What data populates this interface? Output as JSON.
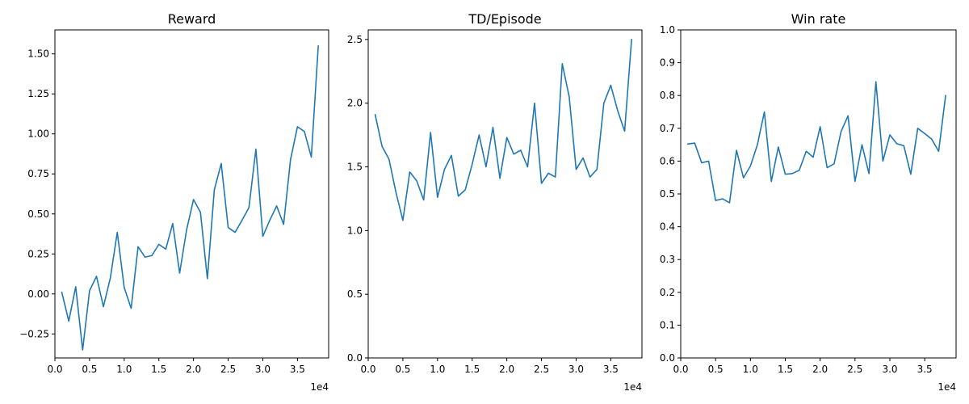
{
  "figure": {
    "background": "#ffffff",
    "line_color": "#1f77b4"
  },
  "chart_data": [
    {
      "type": "line",
      "title": "Reward",
      "xlabel": "",
      "ylabel": "",
      "x_offset_label": "1e4",
      "xlim": [
        0,
        39500
      ],
      "ylim": [
        -0.4,
        1.65
      ],
      "xticks": [
        0,
        5000,
        10000,
        15000,
        20000,
        25000,
        30000,
        35000
      ],
      "xtick_labels": [
        "0.0",
        "0.5",
        "1.0",
        "1.5",
        "2.0",
        "2.5",
        "3.0",
        "3.5"
      ],
      "yticks": [
        -0.25,
        0.0,
        0.25,
        0.5,
        0.75,
        1.0,
        1.25,
        1.5
      ],
      "ytick_labels": [
        "−0.25",
        "0.00",
        "0.25",
        "0.50",
        "0.75",
        "1.00",
        "1.25",
        "1.50"
      ],
      "x": [
        1000,
        2000,
        3000,
        4000,
        5000,
        6000,
        7000,
        8000,
        9000,
        10000,
        11000,
        12000,
        13000,
        14000,
        15000,
        16000,
        17000,
        18000,
        19000,
        20000,
        21000,
        22000,
        23000,
        24000,
        25000,
        26000,
        27000,
        28000,
        29000,
        30000,
        31000,
        32000,
        33000,
        34000,
        35000,
        36000,
        37000,
        38000
      ],
      "series": [
        {
          "values": [
            0.01,
            -0.17,
            0.045,
            -0.35,
            0.02,
            0.11,
            -0.08,
            0.1,
            0.385,
            0.04,
            -0.09,
            0.295,
            0.23,
            0.24,
            0.31,
            0.28,
            0.44,
            0.13,
            0.4,
            0.59,
            0.51,
            0.095,
            0.65,
            0.815,
            0.415,
            0.385,
            0.46,
            0.54,
            0.905,
            0.36,
            0.46,
            0.55,
            0.435,
            0.84,
            1.045,
            1.015,
            0.855,
            1.55
          ]
        }
      ]
    },
    {
      "type": "line",
      "title": "TD/Episode",
      "xlabel": "",
      "ylabel": "",
      "x_offset_label": "1e4",
      "xlim": [
        0,
        39500
      ],
      "ylim": [
        0.0,
        2.575
      ],
      "xticks": [
        0,
        5000,
        10000,
        15000,
        20000,
        25000,
        30000,
        35000
      ],
      "xtick_labels": [
        "0.0",
        "0.5",
        "1.0",
        "1.5",
        "2.0",
        "2.5",
        "3.0",
        "3.5"
      ],
      "yticks": [
        0.0,
        0.5,
        1.0,
        1.5,
        2.0,
        2.5
      ],
      "ytick_labels": [
        "0.0",
        "0.5",
        "1.0",
        "1.5",
        "2.0",
        "2.5"
      ],
      "x": [
        1000,
        2000,
        3000,
        4000,
        5000,
        6000,
        7000,
        8000,
        9000,
        10000,
        11000,
        12000,
        13000,
        14000,
        15000,
        16000,
        17000,
        18000,
        19000,
        20000,
        21000,
        22000,
        23000,
        24000,
        25000,
        26000,
        27000,
        28000,
        29000,
        30000,
        31000,
        32000,
        33000,
        34000,
        35000,
        36000,
        37000,
        38000
      ],
      "series": [
        {
          "values": [
            1.91,
            1.66,
            1.56,
            1.3,
            1.08,
            1.46,
            1.39,
            1.24,
            1.77,
            1.26,
            1.48,
            1.59,
            1.27,
            1.32,
            1.52,
            1.75,
            1.5,
            1.81,
            1.41,
            1.73,
            1.6,
            1.63,
            1.5,
            2.0,
            1.37,
            1.45,
            1.42,
            2.31,
            2.05,
            1.48,
            1.57,
            1.42,
            1.48,
            2.0,
            2.14,
            1.94,
            1.78,
            2.5
          ]
        }
      ]
    },
    {
      "type": "line",
      "title": "Win rate",
      "xlabel": "",
      "ylabel": "",
      "x_offset_label": "1e4",
      "xlim": [
        0,
        39500
      ],
      "ylim": [
        0.0,
        1.0
      ],
      "xticks": [
        0,
        5000,
        10000,
        15000,
        20000,
        25000,
        30000,
        35000
      ],
      "xtick_labels": [
        "0.0",
        "0.5",
        "1.0",
        "1.5",
        "2.0",
        "2.5",
        "3.0",
        "3.5"
      ],
      "yticks": [
        0.0,
        0.1,
        0.2,
        0.3,
        0.4,
        0.5,
        0.6,
        0.7,
        0.8,
        0.9,
        1.0
      ],
      "ytick_labels": [
        "0.0",
        "0.1",
        "0.2",
        "0.3",
        "0.4",
        "0.5",
        "0.6",
        "0.7",
        "0.8",
        "0.9",
        "1.0"
      ],
      "x": [
        1000,
        2000,
        3000,
        4000,
        5000,
        6000,
        7000,
        8000,
        9000,
        10000,
        11000,
        12000,
        13000,
        14000,
        15000,
        16000,
        17000,
        18000,
        19000,
        20000,
        21000,
        22000,
        23000,
        24000,
        25000,
        26000,
        27000,
        28000,
        29000,
        30000,
        31000,
        32000,
        33000,
        34000,
        35000,
        36000,
        37000,
        38000
      ],
      "series": [
        {
          "values": [
            0.652,
            0.655,
            0.595,
            0.6,
            0.48,
            0.485,
            0.473,
            0.633,
            0.549,
            0.585,
            0.65,
            0.75,
            0.538,
            0.643,
            0.56,
            0.562,
            0.572,
            0.63,
            0.612,
            0.705,
            0.58,
            0.592,
            0.69,
            0.738,
            0.538,
            0.65,
            0.562,
            0.842,
            0.6,
            0.68,
            0.653,
            0.647,
            0.56,
            0.7,
            0.684,
            0.667,
            0.63,
            0.8
          ]
        }
      ]
    }
  ]
}
